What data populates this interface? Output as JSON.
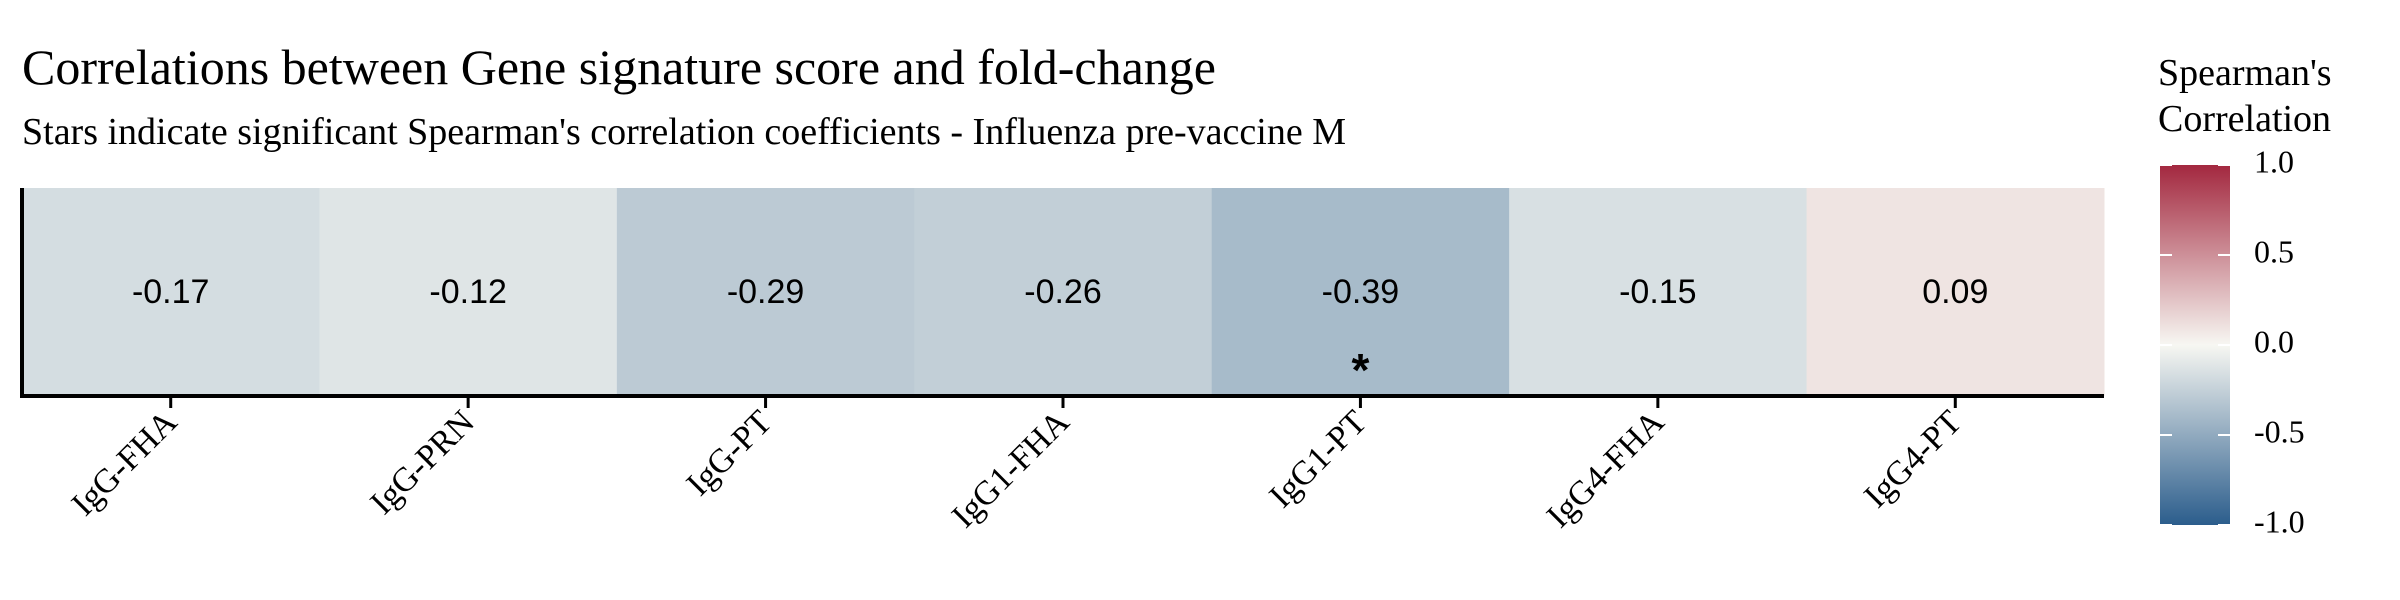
{
  "chart_data": {
    "type": "heatmap",
    "title": "Correlations between Gene signature score and fold-change",
    "subtitle": "Stars indicate significant Spearman's correlation coefficients - Influenza pre-vaccine M",
    "categories": [
      "IgG-FHA",
      "IgG-PRN",
      "IgG-PT",
      "IgG1-FHA",
      "IgG1-PT",
      "IgG4-FHA",
      "IgG4-PT"
    ],
    "values": [
      -0.17,
      -0.12,
      -0.29,
      -0.26,
      -0.39,
      -0.15,
      0.09
    ],
    "labels": [
      "-0.17",
      "-0.12",
      "-0.29",
      "-0.26",
      "-0.39",
      "-0.15",
      "0.09"
    ],
    "significance": [
      "",
      "",
      "",
      "",
      "*",
      "",
      ""
    ],
    "legend": {
      "title_lines": [
        "Spearman's",
        "Correlation"
      ],
      "ticks": [
        1.0,
        0.5,
        0.0,
        -0.5,
        -1.0
      ],
      "tick_labels": [
        "1.0",
        "0.5",
        "0.0",
        "-0.5",
        "-1.0"
      ],
      "range": [
        -1.0,
        1.0
      ],
      "placement": "right"
    },
    "colors": {
      "low": "#2b5d8c",
      "mid": "#f7f7f2",
      "high": "#a3283f"
    }
  }
}
